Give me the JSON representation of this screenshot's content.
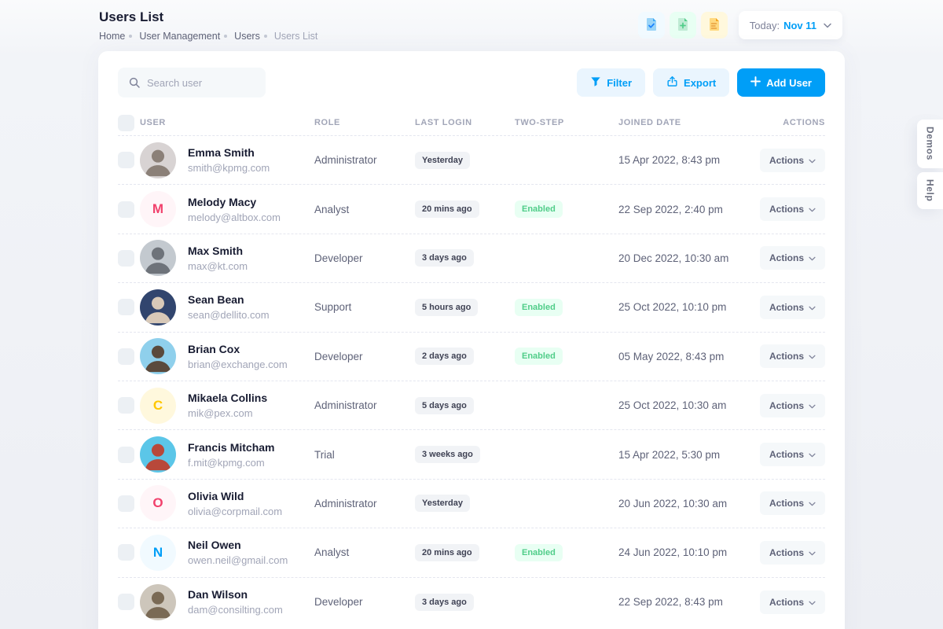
{
  "page": {
    "title": "Users List",
    "breadcrumb": [
      "Home",
      "User Management",
      "Users",
      "Users List"
    ]
  },
  "topbar": {
    "quick_icons": [
      "file-check-icon",
      "file-plus-icon",
      "file-lines-icon"
    ],
    "date_label": "Today:",
    "date_value": "Nov 11"
  },
  "toolbar": {
    "search_placeholder": "Search user",
    "filter_label": "Filter",
    "export_label": "Export",
    "add_user_label": "Add User"
  },
  "side_tabs": {
    "demos": "Demos",
    "help": "Help"
  },
  "table": {
    "headers": [
      "USER",
      "ROLE",
      "LAST LOGIN",
      "TWO-STEP",
      "JOINED DATE",
      "ACTIONS"
    ],
    "actions_label": "Actions",
    "two_step_enabled_label": "Enabled",
    "rows": [
      {
        "name": "Emma Smith",
        "email": "smith@kpmg.com",
        "avatar": {
          "type": "photo",
          "bg": "#d8d3d3",
          "fg": "#8b8078"
        },
        "role": "Administrator",
        "last_login": "Yesterday",
        "two_step": "",
        "joined": "15 Apr 2022, 8:43 pm"
      },
      {
        "name": "Melody Macy",
        "email": "melody@altbox.com",
        "avatar": {
          "type": "initial",
          "letter": "M",
          "color": "#F1416C",
          "bg": "#FFF5F8"
        },
        "role": "Analyst",
        "last_login": "20 mins ago",
        "two_step": "Enabled",
        "joined": "22 Sep 2022, 2:40 pm"
      },
      {
        "name": "Max Smith",
        "email": "max@kt.com",
        "avatar": {
          "type": "photo",
          "bg": "#c3c9cf",
          "fg": "#6e737a"
        },
        "role": "Developer",
        "last_login": "3 days ago",
        "two_step": "",
        "joined": "20 Dec 2022, 10:30 am"
      },
      {
        "name": "Sean Bean",
        "email": "sean@dellito.com",
        "avatar": {
          "type": "photo",
          "bg": "#31456e",
          "fg": "#d8c9b8"
        },
        "role": "Support",
        "last_login": "5 hours ago",
        "two_step": "Enabled",
        "joined": "25 Oct 2022, 10:10 pm"
      },
      {
        "name": "Brian Cox",
        "email": "brian@exchange.com",
        "avatar": {
          "type": "photo",
          "bg": "#8fd0ec",
          "fg": "#5a4a3c"
        },
        "role": "Developer",
        "last_login": "2 days ago",
        "two_step": "Enabled",
        "joined": "05 May 2022, 8:43 pm"
      },
      {
        "name": "Mikaela Collins",
        "email": "mik@pex.com",
        "avatar": {
          "type": "initial",
          "letter": "C",
          "color": "#FFC700",
          "bg": "#FFF8DD"
        },
        "role": "Administrator",
        "last_login": "5 days ago",
        "two_step": "",
        "joined": "25 Oct 2022, 10:30 am"
      },
      {
        "name": "Francis Mitcham",
        "email": "f.mit@kpmg.com",
        "avatar": {
          "type": "photo",
          "bg": "#5bc6e8",
          "fg": "#b8483a"
        },
        "role": "Trial",
        "last_login": "3 weeks ago",
        "two_step": "",
        "joined": "15 Apr 2022, 5:30 pm"
      },
      {
        "name": "Olivia Wild",
        "email": "olivia@corpmail.com",
        "avatar": {
          "type": "initial",
          "letter": "O",
          "color": "#F1416C",
          "bg": "#FFF5F8"
        },
        "role": "Administrator",
        "last_login": "Yesterday",
        "two_step": "",
        "joined": "20 Jun 2022, 10:30 am"
      },
      {
        "name": "Neil Owen",
        "email": "owen.neil@gmail.com",
        "avatar": {
          "type": "initial",
          "letter": "N",
          "color": "#009EF7",
          "bg": "#F1FAFF"
        },
        "role": "Analyst",
        "last_login": "20 mins ago",
        "two_step": "Enabled",
        "joined": "24 Jun 2022, 10:10 pm"
      },
      {
        "name": "Dan Wilson",
        "email": "dam@consilting.com",
        "avatar": {
          "type": "photo",
          "bg": "#cdc6bb",
          "fg": "#7a6a55"
        },
        "role": "Developer",
        "last_login": "3 days ago",
        "two_step": "",
        "joined": "22 Sep 2022, 8:43 pm"
      }
    ]
  },
  "colors": {
    "primary": "#009EF7",
    "primary_light": "#EAF5FE",
    "success": "#50CD89",
    "success_light": "#E8FFF3",
    "warning": "#FFC700",
    "warning_light": "#FFF8DD",
    "danger": "#F1416C",
    "danger_light": "#FFF5F8",
    "text_dark": "#181C32",
    "text_gray": "#5E6278",
    "text_muted": "#A1A5B7",
    "badge_light_bg": "#F1F3F6",
    "row_divider": "#E4E6EF",
    "input_bg": "#F5F8FA"
  }
}
